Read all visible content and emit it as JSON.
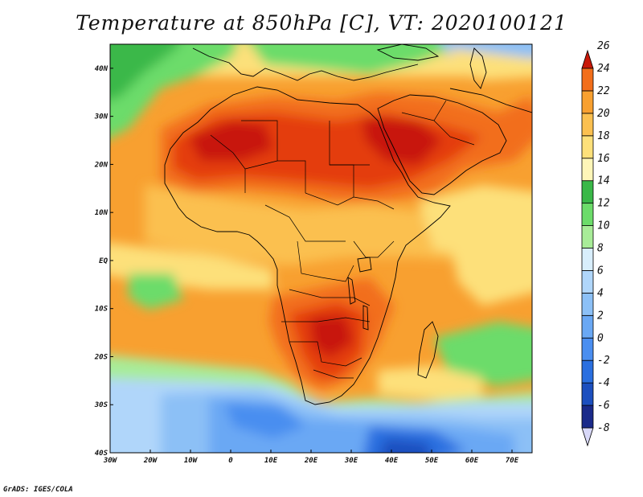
{
  "title": "Temperature at 850hPa [C], VT: 2020100121",
  "credit": "GrADS: IGES/COLA",
  "map": {
    "lon_range": [
      -30,
      75
    ],
    "lat_range": [
      -40,
      45
    ],
    "lon_ticks": [
      {
        "value": -30,
        "label": "30W"
      },
      {
        "value": -20,
        "label": "20W"
      },
      {
        "value": -10,
        "label": "10W"
      },
      {
        "value": 0,
        "label": "0"
      },
      {
        "value": 10,
        "label": "10E"
      },
      {
        "value": 20,
        "label": "20E"
      },
      {
        "value": 30,
        "label": "30E"
      },
      {
        "value": 40,
        "label": "40E"
      },
      {
        "value": 50,
        "label": "50E"
      },
      {
        "value": 60,
        "label": "60E"
      },
      {
        "value": 70,
        "label": "70E"
      }
    ],
    "lat_ticks": [
      {
        "value": 40,
        "label": "40N"
      },
      {
        "value": 30,
        "label": "30N"
      },
      {
        "value": 20,
        "label": "20N"
      },
      {
        "value": 10,
        "label": "10N"
      },
      {
        "value": 0,
        "label": "EQ"
      },
      {
        "value": -10,
        "label": "10S"
      },
      {
        "value": -20,
        "label": "20S"
      },
      {
        "value": -30,
        "label": "30S"
      },
      {
        "value": -40,
        "label": "40S"
      }
    ]
  },
  "colorbar": {
    "labels": [
      "-8",
      "-6",
      "-4",
      "-2",
      "0",
      "2",
      "4",
      "6",
      "8",
      "10",
      "12",
      "14",
      "16",
      "18",
      "20",
      "22",
      "24",
      "26"
    ],
    "colors": [
      "#1a2a8a",
      "#1c4fbf",
      "#2a6fe0",
      "#4a8ef0",
      "#6aa8f4",
      "#8cc0f6",
      "#b0d6fa",
      "#d8eefc",
      "#a8ec98",
      "#6cdc6a",
      "#3ab848",
      "#fef6b8",
      "#fde07a",
      "#fbc050",
      "#f8a030",
      "#f26e1a",
      "#e43c0e",
      "#c81808"
    ]
  },
  "colors": {
    "land_border": "#000000",
    "frame": "#000000"
  }
}
